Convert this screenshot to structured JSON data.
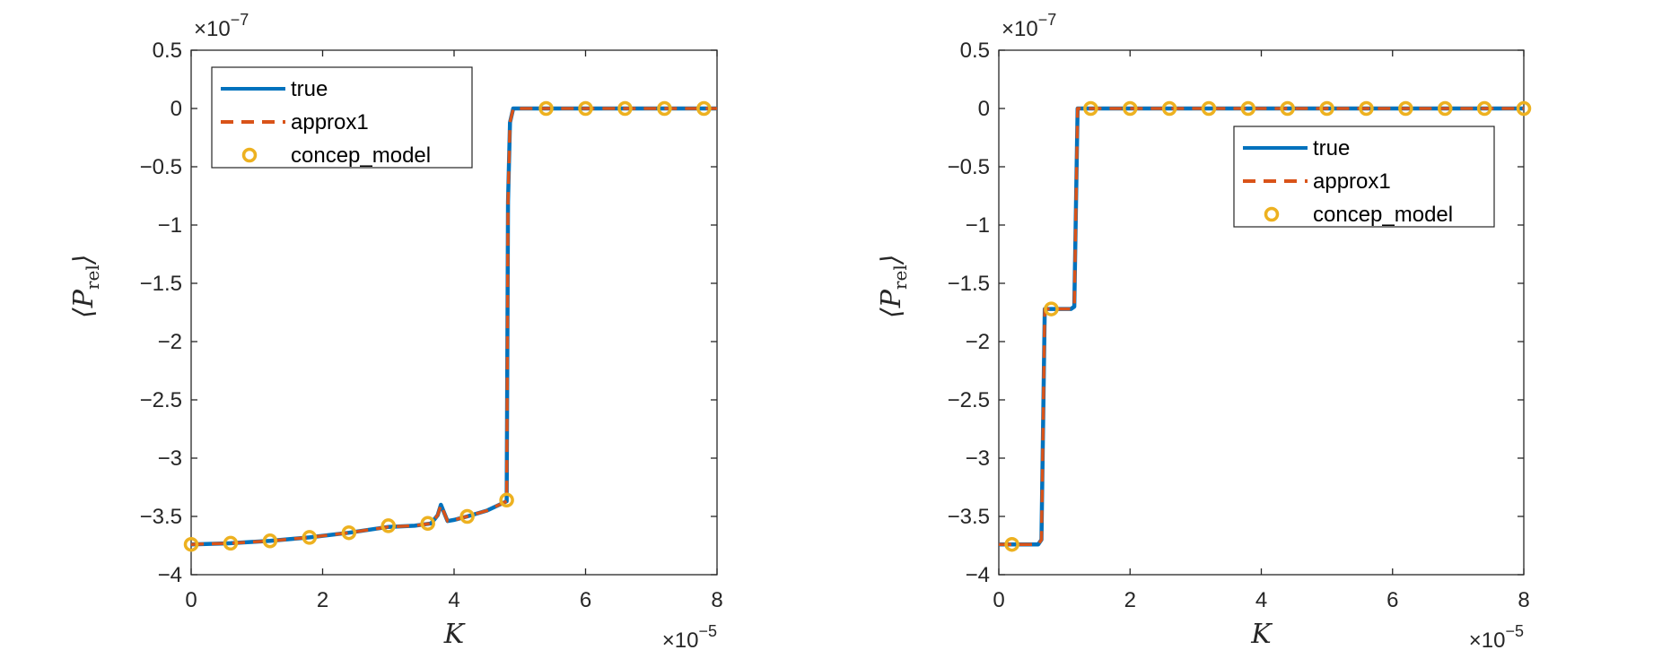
{
  "colors": {
    "true": "#0072BD",
    "approx1": "#D95319",
    "concep_model": "#EDB120",
    "axes": "#262626"
  },
  "chart_data": [
    {
      "type": "line",
      "xlabel": "K",
      "ylabel": "⟨P",
      "ylabel_sub": "rel",
      "ylabel_close": "⟩",
      "x_exponent_prefix": "×10",
      "x_exponent_power": "−5",
      "y_exponent_prefix": "×10",
      "y_exponent_power": "−7",
      "xlim": [
        0,
        8
      ],
      "ylim": [
        -4,
        0.5
      ],
      "x_ticks": [
        0,
        2,
        4,
        6,
        8
      ],
      "x_tick_labels": [
        "0",
        "2",
        "4",
        "6",
        "8"
      ],
      "y_ticks": [
        0.5,
        0,
        -0.5,
        -1,
        -1.5,
        -2,
        -2.5,
        -3,
        -3.5,
        -4
      ],
      "y_tick_labels": [
        "0.5",
        "0",
        "−0.5",
        "−1",
        "−1.5",
        "−2",
        "−2.5",
        "−3",
        "−3.5",
        "−4"
      ],
      "legend_position": "top-left",
      "series": [
        {
          "name": "true",
          "style": "line",
          "x": [
            0,
            0.6,
            1.2,
            1.8,
            2.4,
            3.0,
            3.4,
            3.65,
            3.75,
            3.8,
            3.85,
            3.9,
            4.0,
            4.2,
            4.5,
            4.8,
            4.82,
            4.85,
            4.9,
            5.0,
            6.0,
            7.0,
            8.0
          ],
          "y": [
            -3.74,
            -3.73,
            -3.71,
            -3.68,
            -3.64,
            -3.59,
            -3.58,
            -3.56,
            -3.49,
            -3.4,
            -3.47,
            -3.54,
            -3.53,
            -3.5,
            -3.45,
            -3.37,
            -0.8,
            -0.12,
            0,
            0,
            0,
            0,
            0
          ]
        },
        {
          "name": "approx1",
          "style": "dashed",
          "x": [
            0,
            0.6,
            1.2,
            1.8,
            2.4,
            3.0,
            3.4,
            3.65,
            3.75,
            3.8,
            3.85,
            3.9,
            4.0,
            4.2,
            4.5,
            4.8,
            4.82,
            4.85,
            4.9,
            5.0,
            6.0,
            7.0,
            8.0
          ],
          "y": [
            -3.74,
            -3.73,
            -3.71,
            -3.68,
            -3.64,
            -3.59,
            -3.58,
            -3.56,
            -3.49,
            -3.4,
            -3.47,
            -3.54,
            -3.53,
            -3.5,
            -3.45,
            -3.37,
            -0.8,
            -0.12,
            0,
            0,
            0,
            0,
            0
          ]
        },
        {
          "name": "concep_model",
          "style": "markers",
          "x": [
            0,
            0.6,
            1.2,
            1.8,
            2.4,
            3.0,
            3.6,
            4.2,
            4.8,
            5.4,
            6.0,
            6.6,
            7.2,
            7.8
          ],
          "y": [
            -3.74,
            -3.73,
            -3.71,
            -3.68,
            -3.64,
            -3.58,
            -3.56,
            -3.5,
            -3.36,
            0,
            0,
            0,
            0,
            0
          ]
        }
      ]
    },
    {
      "type": "line",
      "xlabel": "K",
      "ylabel": "⟨P",
      "ylabel_sub": "rel",
      "ylabel_close": "⟩",
      "x_exponent_prefix": "×10",
      "x_exponent_power": "−5",
      "y_exponent_prefix": "×10",
      "y_exponent_power": "−7",
      "xlim": [
        0,
        8
      ],
      "ylim": [
        -4,
        0.5
      ],
      "x_ticks": [
        0,
        2,
        4,
        6,
        8
      ],
      "x_tick_labels": [
        "0",
        "2",
        "4",
        "6",
        "8"
      ],
      "y_ticks": [
        0.5,
        0,
        -0.5,
        -1,
        -1.5,
        -2,
        -2.5,
        -3,
        -3.5,
        -4
      ],
      "y_tick_labels": [
        "0.5",
        "0",
        "−0.5",
        "−1",
        "−1.5",
        "−2",
        "−2.5",
        "−3",
        "−3.5",
        "−4"
      ],
      "legend_position": "top-right",
      "series": [
        {
          "name": "true",
          "style": "line",
          "x": [
            0,
            0.6,
            0.65,
            0.7,
            0.75,
            1.1,
            1.15,
            1.2,
            1.25,
            8.0
          ],
          "y": [
            -3.74,
            -3.74,
            -3.7,
            -1.72,
            -1.72,
            -1.72,
            -1.7,
            0,
            0,
            0
          ]
        },
        {
          "name": "approx1",
          "style": "dashed",
          "x": [
            0,
            0.6,
            0.65,
            0.7,
            0.75,
            1.1,
            1.15,
            1.2,
            1.25,
            8.0
          ],
          "y": [
            -3.74,
            -3.74,
            -3.7,
            -1.72,
            -1.72,
            -1.72,
            -1.7,
            0,
            0,
            0
          ]
        },
        {
          "name": "concep_model",
          "style": "markers",
          "x": [
            0.2,
            0.8,
            1.4,
            2.0,
            2.6,
            3.2,
            3.8,
            4.4,
            5.0,
            5.6,
            6.2,
            6.8,
            7.4,
            8.0
          ],
          "y": [
            -3.74,
            -1.72,
            0,
            0,
            0,
            0,
            0,
            0,
            0,
            0,
            0,
            0,
            0,
            0
          ]
        }
      ]
    }
  ]
}
